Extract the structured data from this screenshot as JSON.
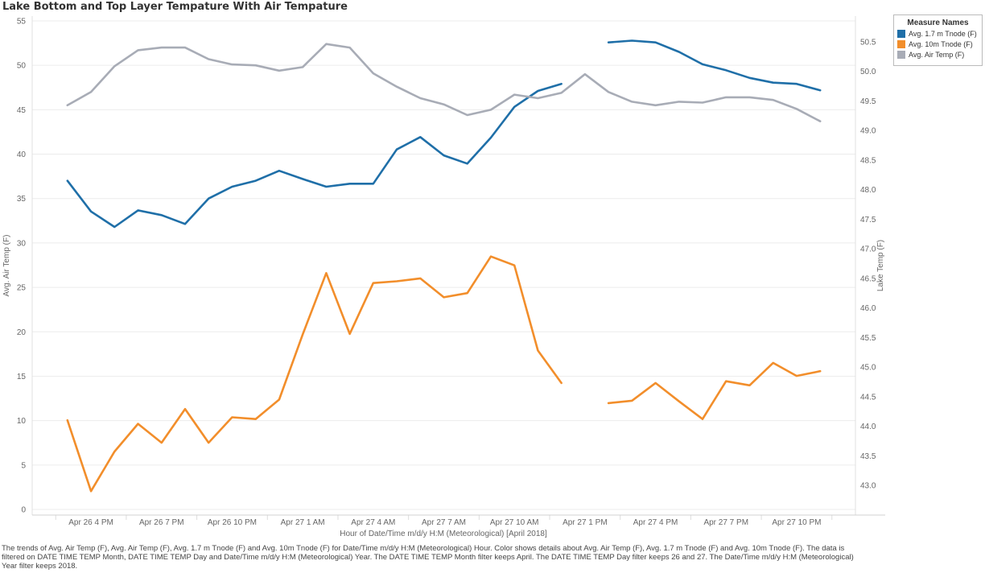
{
  "chart_data": {
    "type": "line",
    "title": "Lake Bottom and Top Layer Tempature With Air Tempature",
    "xlabel": "Hour of Date/Time m/d/y H:M (Meteorological) [April 2018]",
    "ylabel_left": "Avg. Air Temp (F)",
    "ylabel_right": "Lake Temp (F)",
    "ylim_left": [
      0,
      55
    ],
    "ylim_right": [
      42.6,
      50.7
    ],
    "yticks_left": [
      0,
      5,
      10,
      15,
      20,
      25,
      30,
      35,
      40,
      45,
      50,
      55
    ],
    "yticks_right": [
      "43.0",
      "43.5",
      "44.0",
      "44.5",
      "45.0",
      "45.5",
      "46.0",
      "46.5",
      "47.0",
      "47.5",
      "48.0",
      "48.5",
      "49.0",
      "49.5",
      "50.0",
      "50.5"
    ],
    "x_tick_labels": [
      "Apr 26 4 PM",
      "Apr 26 7 PM",
      "Apr 26 10 PM",
      "Apr 27 1 AM",
      "Apr 27 4 AM",
      "Apr 27 7 AM",
      "Apr 27 10 AM",
      "Apr 27 1 PM",
      "Apr 27 4 PM",
      "Apr 27 7 PM",
      "Apr 27 10 PM"
    ],
    "x_tick_hours": [
      16,
      19,
      22,
      25,
      28,
      31,
      34,
      37,
      40,
      43,
      46
    ],
    "grid": true,
    "legend_title": "Measure Names",
    "legend_position": "top-right",
    "series": [
      {
        "name": "Avg. 1.7 m Tnode (F)",
        "color": "#1f6fa8",
        "axis": "right",
        "x": [
          15,
          16,
          17,
          18,
          19,
          20,
          21,
          22,
          23,
          24,
          25,
          26,
          27,
          28,
          29,
          30,
          31,
          32,
          33,
          34,
          35,
          36,
          null,
          38,
          39,
          40,
          41,
          42,
          43,
          44,
          45,
          46,
          47
        ],
        "y": [
          48.15,
          47.63,
          47.37,
          47.65,
          47.57,
          47.42,
          47.85,
          48.05,
          48.15,
          48.32,
          48.18,
          48.05,
          48.1,
          48.1,
          48.68,
          48.89,
          48.58,
          48.44,
          48.88,
          49.4,
          49.67,
          49.79,
          null,
          50.49,
          50.52,
          50.49,
          50.33,
          50.12,
          50.02,
          49.89,
          49.81,
          49.79,
          49.68
        ]
      },
      {
        "name": "Avg. 10m Tnode (F)",
        "color": "#f28e2b",
        "axis": "right",
        "x": [
          15,
          16,
          17,
          18,
          19,
          20,
          21,
          22,
          23,
          24,
          25,
          26,
          27,
          28,
          29,
          30,
          31,
          32,
          33,
          34,
          35,
          36,
          null,
          38,
          39,
          40,
          41,
          42,
          43,
          44,
          45,
          46,
          47
        ],
        "y": [
          44.1,
          42.9,
          43.57,
          44.04,
          43.72,
          44.29,
          43.72,
          44.15,
          44.12,
          44.45,
          45.55,
          46.59,
          45.56,
          46.42,
          46.45,
          46.5,
          46.18,
          46.25,
          46.87,
          46.72,
          45.28,
          44.73,
          null,
          44.39,
          44.43,
          44.73,
          44.42,
          44.12,
          44.76,
          44.69,
          45.07,
          44.85,
          44.93
        ]
      },
      {
        "name": "Avg. Air Temp (F)",
        "color": "#a8acb6",
        "axis": "left",
        "x": [
          15,
          16,
          17,
          18,
          19,
          20,
          21,
          22,
          23,
          24,
          25,
          26,
          27,
          28,
          29,
          30,
          31,
          32,
          33,
          34,
          35,
          36,
          37,
          38,
          39,
          40,
          41,
          42,
          43,
          44,
          45,
          46,
          47
        ],
        "y": [
          45.5,
          47.0,
          49.9,
          51.7,
          52.0,
          52.0,
          50.7,
          50.1,
          50.0,
          49.4,
          49.8,
          52.4,
          52.0,
          49.1,
          47.6,
          46.3,
          45.6,
          44.4,
          45.0,
          46.7,
          46.3,
          46.9,
          49.0,
          47.0,
          45.9,
          45.5,
          45.9,
          45.8,
          46.4,
          46.4,
          46.1,
          45.1,
          43.7
        ]
      }
    ]
  },
  "caption": "The trends of Avg. Air Temp (F), Avg. Air Temp (F), Avg. 1.7 m Tnode (F) and Avg. 10m Tnode (F) for Date/Time m/d/y H:M (Meteorological) Hour.  Color shows details about Avg. Air Temp (F), Avg. 1.7 m Tnode (F) and Avg. 10m Tnode (F). The data is filtered on DATE TIME TEMP Month, DATE TIME TEMP Day and Date/Time m/d/y H:M (Meteorological) Year. The DATE TIME TEMP Month filter keeps April. The DATE TIME TEMP Day filter keeps 26 and 27. The Date/Time m/d/y H:M (Meteorological) Year filter keeps 2018."
}
